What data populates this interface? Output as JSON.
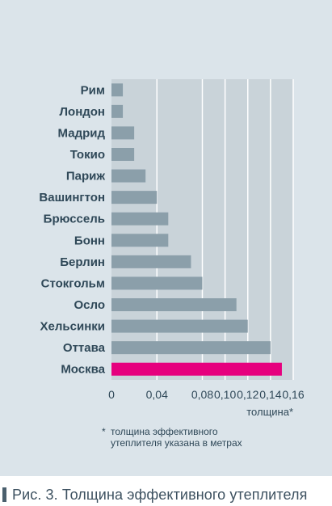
{
  "chart_data": {
    "type": "bar",
    "orientation": "horizontal",
    "categories": [
      "Рим",
      "Лондон",
      "Мадрид",
      "Токио",
      "Париж",
      "Вашингтон",
      "Брюссель",
      "Бонн",
      "Берлин",
      "Стокгольм",
      "Осло",
      "Хельсинки",
      "Оттава",
      "Москва"
    ],
    "values": [
      0.01,
      0.01,
      0.02,
      0.02,
      0.03,
      0.04,
      0.05,
      0.05,
      0.07,
      0.08,
      0.11,
      0.12,
      0.14,
      0.15
    ],
    "highlight_category": "Москва",
    "xlim": [
      0,
      0.16
    ],
    "xticks": [
      0,
      0.04,
      0.08,
      0.1,
      0.12,
      0.14,
      0.16
    ],
    "xtick_labels": [
      "0",
      "0,04",
      "0,08",
      "0,10",
      "0,12",
      "0,14",
      "0,16"
    ],
    "xlabel": "толщина*",
    "grid": true,
    "colors": {
      "bar": "#8b9faa",
      "highlight": "#e6007e",
      "plot_bg": "#c9d3d9",
      "grid": "#ffffff",
      "text": "#2f4858"
    }
  },
  "footnote": {
    "marker": "*",
    "text": "толщина эффективного\nутеплителя указана в метрах"
  },
  "caption": {
    "text": "Рис. 3. Толщина эффективного утеплителя"
  }
}
